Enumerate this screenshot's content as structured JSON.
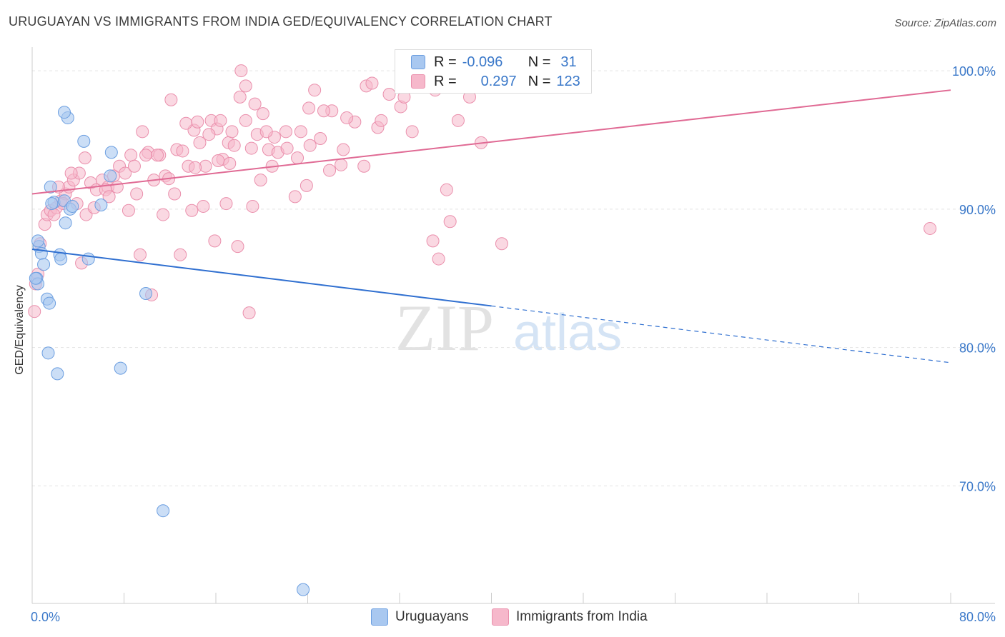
{
  "title": "URUGUAYAN VS IMMIGRANTS FROM INDIA GED/EQUIVALENCY CORRELATION CHART",
  "source": "Source: ZipAtlas.com",
  "watermark": {
    "zip": "ZIP",
    "atlas": "atlas"
  },
  "legend": {
    "rows": [
      {
        "r_label": "R =",
        "r_value": "-0.096",
        "n_label": "N =",
        "n_value": "31"
      },
      {
        "r_label": "R =",
        "r_value": "0.297",
        "n_label": "N =",
        "n_value": "123"
      }
    ]
  },
  "bottom_legend": {
    "series1": "Uruguayans",
    "series2": "Immigrants from India"
  },
  "colors": {
    "blue_fill": "#a9c8f0",
    "blue_stroke": "#6b9ee0",
    "blue_line": "#2f6fd0",
    "pink_fill": "#f6b8cb",
    "pink_stroke": "#ea8fac",
    "pink_line": "#e06a94",
    "axis_text": "#3a78c9"
  },
  "chart_data": {
    "type": "scatter",
    "title": "URUGUAYAN VS IMMIGRANTS FROM INDIA GED/EQUIVALENCY CORRELATION CHART",
    "xlabel": "",
    "ylabel": "GED/Equivalency",
    "xlim": [
      0,
      80
    ],
    "ylim": [
      61.5,
      101.5
    ],
    "x_tick_labels": [
      "0.0%",
      "80.0%"
    ],
    "y_ticks": [
      70,
      80,
      90,
      100
    ],
    "y_tick_labels": [
      "70.0%",
      "80.0%",
      "90.0%",
      "100.0%"
    ],
    "series": [
      {
        "name": "Uruguayans",
        "R": -0.096,
        "N": 31,
        "trend": {
          "x0": 0,
          "y0": 87.1,
          "x1": 40,
          "y1": 83.0,
          "dash_to_x": 80,
          "dash_to_y": 78.9
        },
        "points": [
          [
            0.4,
            85.0
          ],
          [
            0.5,
            84.6
          ],
          [
            0.6,
            87.3
          ],
          [
            0.8,
            86.8
          ],
          [
            1.0,
            86.0
          ],
          [
            1.3,
            83.5
          ],
          [
            1.5,
            83.2
          ],
          [
            1.6,
            91.6
          ],
          [
            1.9,
            90.5
          ],
          [
            2.4,
            86.7
          ],
          [
            2.8,
            90.6
          ],
          [
            3.3,
            90.0
          ],
          [
            2.5,
            86.4
          ],
          [
            2.9,
            89.0
          ],
          [
            2.2,
            78.1
          ],
          [
            1.4,
            79.6
          ],
          [
            3.1,
            96.6
          ],
          [
            2.8,
            97.0
          ],
          [
            4.5,
            94.9
          ],
          [
            6.9,
            94.1
          ],
          [
            6.8,
            92.4
          ],
          [
            6.0,
            90.3
          ],
          [
            4.9,
            86.4
          ],
          [
            9.9,
            83.9
          ],
          [
            7.7,
            78.5
          ],
          [
            11.4,
            68.2
          ],
          [
            23.6,
            62.5
          ],
          [
            0.5,
            87.7
          ],
          [
            3.5,
            90.2
          ],
          [
            0.3,
            85.0
          ],
          [
            1.7,
            90.4
          ]
        ]
      },
      {
        "name": "Immigrants from India",
        "R": 0.297,
        "N": 123,
        "trend": {
          "x0": 0,
          "y0": 91.1,
          "x1": 80,
          "y1": 98.6
        },
        "points": [
          [
            0.2,
            82.6
          ],
          [
            0.3,
            84.6
          ],
          [
            0.5,
            85.3
          ],
          [
            0.7,
            87.5
          ],
          [
            1.1,
            88.9
          ],
          [
            1.3,
            89.6
          ],
          [
            1.6,
            89.9
          ],
          [
            2.1,
            90.1
          ],
          [
            2.5,
            90.6
          ],
          [
            2.9,
            91.1
          ],
          [
            3.2,
            91.6
          ],
          [
            3.6,
            92.1
          ],
          [
            4.1,
            92.6
          ],
          [
            4.6,
            93.7
          ],
          [
            5.1,
            91.9
          ],
          [
            5.6,
            91.4
          ],
          [
            6.1,
            92.1
          ],
          [
            6.6,
            91.6
          ],
          [
            7.1,
            92.4
          ],
          [
            7.6,
            93.1
          ],
          [
            8.1,
            92.6
          ],
          [
            8.6,
            93.9
          ],
          [
            9.1,
            91.1
          ],
          [
            9.6,
            95.6
          ],
          [
            10.1,
            94.1
          ],
          [
            10.6,
            92.1
          ],
          [
            11.1,
            93.9
          ],
          [
            11.6,
            92.4
          ],
          [
            12.1,
            97.9
          ],
          [
            12.6,
            94.3
          ],
          [
            13.1,
            94.2
          ],
          [
            13.6,
            93.1
          ],
          [
            14.1,
            95.7
          ],
          [
            14.6,
            94.8
          ],
          [
            15.1,
            93.1
          ],
          [
            15.6,
            96.4
          ],
          [
            16.1,
            95.8
          ],
          [
            16.6,
            93.6
          ],
          [
            17.1,
            94.8
          ],
          [
            17.6,
            94.6
          ],
          [
            18.1,
            98.1
          ],
          [
            18.6,
            96.4
          ],
          [
            19.1,
            94.4
          ],
          [
            19.6,
            95.4
          ],
          [
            20.1,
            96.9
          ],
          [
            20.6,
            94.3
          ],
          [
            21.1,
            95.2
          ],
          [
            22.1,
            95.6
          ],
          [
            23.1,
            93.7
          ],
          [
            24.1,
            97.3
          ],
          [
            25.1,
            95.1
          ],
          [
            26.1,
            97.1
          ],
          [
            27.1,
            94.3
          ],
          [
            28.1,
            96.3
          ],
          [
            29.1,
            98.9
          ],
          [
            30.1,
            95.9
          ],
          [
            31.1,
            98.3
          ],
          [
            32.1,
            97.4
          ],
          [
            33.1,
            95.6
          ],
          [
            35.1,
            98.6
          ],
          [
            37.1,
            96.4
          ],
          [
            38.1,
            98.1
          ],
          [
            39.1,
            94.8
          ],
          [
            2.3,
            91.6
          ],
          [
            3.9,
            90.4
          ],
          [
            4.7,
            89.6
          ],
          [
            6.4,
            91.4
          ],
          [
            8.4,
            89.9
          ],
          [
            9.4,
            86.7
          ],
          [
            10.4,
            83.8
          ],
          [
            11.4,
            89.6
          ],
          [
            12.9,
            86.7
          ],
          [
            13.9,
            89.9
          ],
          [
            14.9,
            90.2
          ],
          [
            15.9,
            87.7
          ],
          [
            16.9,
            90.4
          ],
          [
            17.9,
            87.3
          ],
          [
            18.9,
            82.5
          ],
          [
            19.9,
            92.1
          ],
          [
            20.9,
            93.1
          ],
          [
            22.9,
            90.9
          ],
          [
            23.9,
            91.7
          ],
          [
            26.9,
            93.2
          ],
          [
            28.9,
            93.1
          ],
          [
            34.9,
            87.7
          ],
          [
            35.4,
            86.4
          ],
          [
            36.4,
            89.1
          ],
          [
            36.1,
            91.4
          ],
          [
            40.9,
            87.5
          ],
          [
            78.2,
            88.6
          ],
          [
            18.2,
            100.0
          ],
          [
            18.6,
            98.9
          ],
          [
            24.6,
            98.6
          ],
          [
            29.6,
            99.1
          ],
          [
            9.9,
            93.9
          ],
          [
            11.9,
            92.2
          ],
          [
            13.4,
            96.2
          ],
          [
            14.4,
            96.3
          ],
          [
            16.4,
            96.4
          ],
          [
            17.4,
            95.6
          ],
          [
            19.4,
            97.6
          ],
          [
            20.4,
            95.6
          ],
          [
            21.4,
            94.1
          ],
          [
            23.4,
            95.6
          ],
          [
            25.4,
            97.1
          ],
          [
            27.4,
            96.6
          ],
          [
            30.4,
            96.4
          ],
          [
            32.4,
            98.1
          ],
          [
            5.4,
            90.1
          ],
          [
            7.4,
            91.6
          ],
          [
            8.9,
            93.1
          ],
          [
            10.9,
            93.9
          ],
          [
            12.4,
            91.1
          ],
          [
            14.2,
            93.0
          ],
          [
            15.4,
            95.4
          ],
          [
            16.2,
            93.5
          ],
          [
            17.2,
            93.3
          ],
          [
            19.2,
            90.2
          ],
          [
            22.2,
            94.4
          ],
          [
            24.2,
            94.6
          ],
          [
            25.9,
            92.8
          ],
          [
            3.4,
            92.6
          ],
          [
            1.9,
            89.6
          ],
          [
            2.7,
            90.4
          ],
          [
            4.3,
            86.1
          ],
          [
            6.7,
            90.9
          ]
        ]
      }
    ]
  }
}
